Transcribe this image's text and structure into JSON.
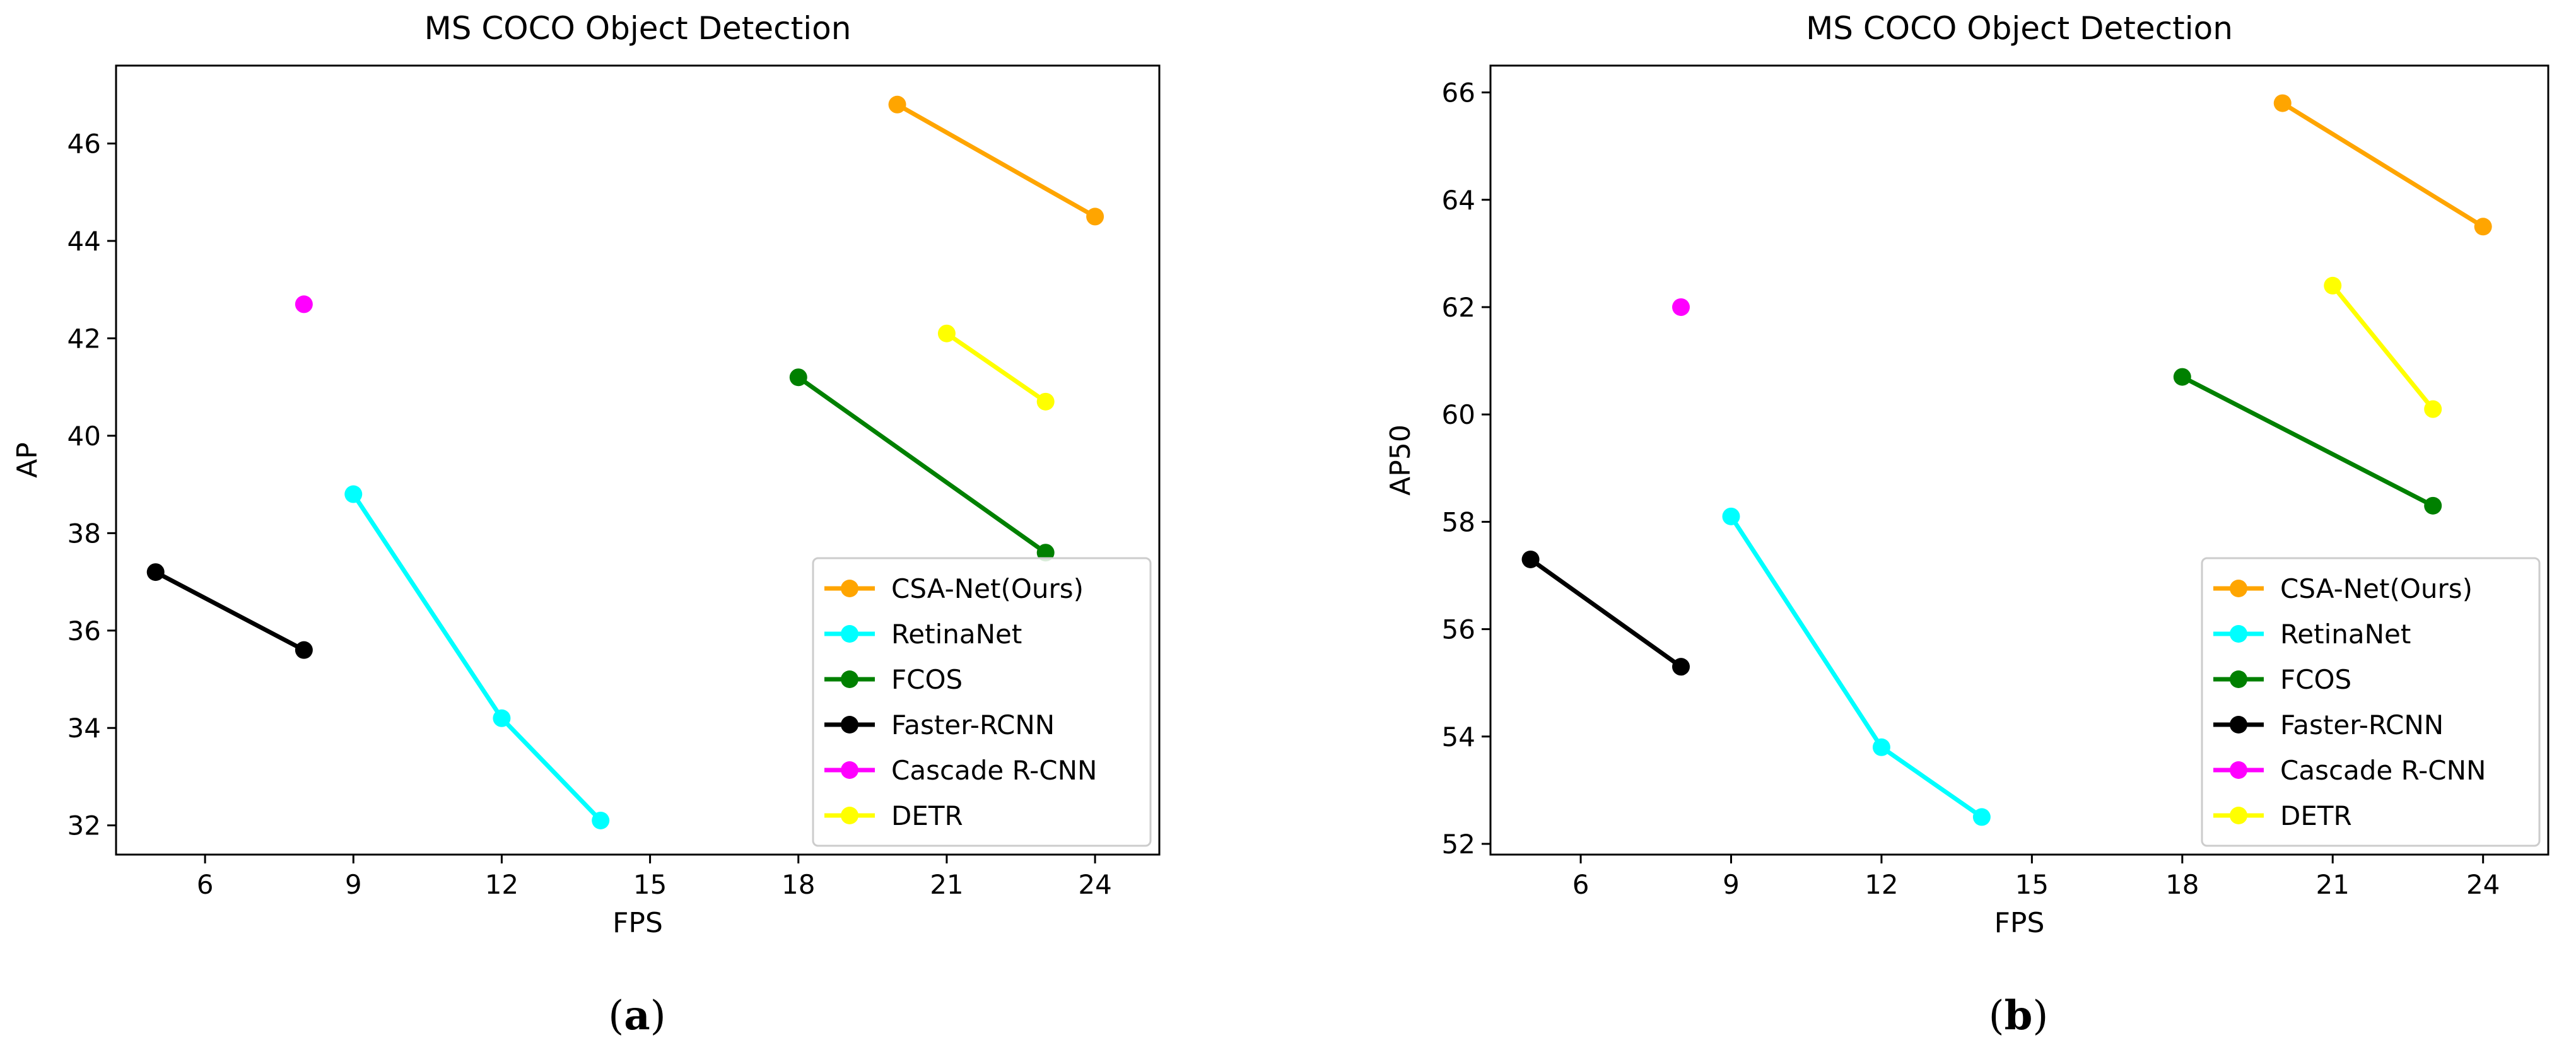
{
  "chart_data": [
    {
      "type": "line",
      "panel_label": "(a)",
      "panel_letter": "a",
      "title": "MS COCO Object Detection",
      "xlabel": "FPS",
      "ylabel": "AP",
      "xlim": [
        4.2,
        25.3
      ],
      "ylim": [
        31.4,
        47.6
      ],
      "xticks": [
        6,
        9,
        12,
        15,
        18,
        21,
        24
      ],
      "yticks": [
        32,
        34,
        36,
        38,
        40,
        42,
        44,
        46
      ],
      "legend_position": "lower-right",
      "series": [
        {
          "name": "CSA-Net(Ours)",
          "color": "#FFA500",
          "x": [
            20,
            24
          ],
          "y": [
            46.8,
            44.5
          ]
        },
        {
          "name": "RetinaNet",
          "color": "#00FFFF",
          "x": [
            9,
            12,
            14
          ],
          "y": [
            38.8,
            34.2,
            32.1
          ]
        },
        {
          "name": "FCOS",
          "color": "#008000",
          "x": [
            18,
            23
          ],
          "y": [
            41.2,
            37.6
          ]
        },
        {
          "name": "Faster-RCNN",
          "color": "#000000",
          "x": [
            5,
            8
          ],
          "y": [
            37.2,
            35.6
          ]
        },
        {
          "name": "Cascade R-CNN",
          "color": "#FF00FF",
          "x": [
            8
          ],
          "y": [
            42.7
          ]
        },
        {
          "name": "DETR",
          "color": "#FFFF00",
          "x": [
            21,
            23
          ],
          "y": [
            42.1,
            40.7
          ]
        }
      ]
    },
    {
      "type": "line",
      "panel_label": "(b)",
      "panel_letter": "b",
      "title": "MS COCO Object Detection",
      "xlabel": "FPS",
      "ylabel": "AP50",
      "xlim": [
        4.2,
        25.3
      ],
      "ylim": [
        51.8,
        66.5
      ],
      "xticks": [
        6,
        9,
        12,
        15,
        18,
        21,
        24
      ],
      "yticks": [
        52,
        54,
        56,
        58,
        60,
        62,
        64,
        66
      ],
      "legend_position": "lower-right",
      "series": [
        {
          "name": "CSA-Net(Ours)",
          "color": "#FFA500",
          "x": [
            20,
            24
          ],
          "y": [
            65.8,
            63.5
          ]
        },
        {
          "name": "RetinaNet",
          "color": "#00FFFF",
          "x": [
            9,
            12,
            14
          ],
          "y": [
            58.1,
            53.8,
            52.5
          ]
        },
        {
          "name": "FCOS",
          "color": "#008000",
          "x": [
            18,
            23
          ],
          "y": [
            60.7,
            58.3
          ]
        },
        {
          "name": "Faster-RCNN",
          "color": "#000000",
          "x": [
            5,
            8
          ],
          "y": [
            57.3,
            55.3
          ]
        },
        {
          "name": "Cascade R-CNN",
          "color": "#FF00FF",
          "x": [
            8
          ],
          "y": [
            62.0
          ]
        },
        {
          "name": "DETR",
          "color": "#FFFF00",
          "x": [
            21,
            23
          ],
          "y": [
            62.4,
            60.1
          ]
        }
      ]
    }
  ]
}
